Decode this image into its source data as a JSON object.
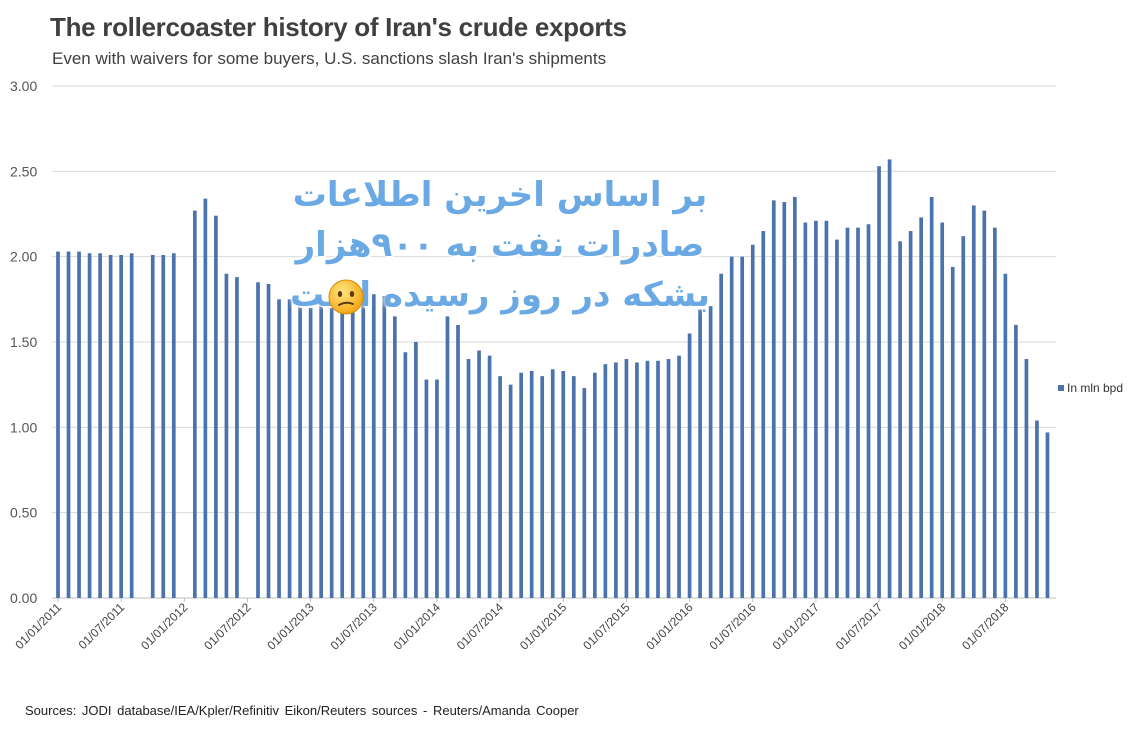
{
  "title": "The rollercoaster history of Iran's crude exports",
  "subtitle": "Even with waivers for some buyers, U.S. sanctions slash Iran's shipments",
  "source": "Sources: JODI database/IEA/Kpler/Refinitiv Eikon/Reuters sources - Reuters/Amanda Cooper",
  "overlay_text": "بر اساس اخرین اطلاعات صادرات نفت به ۹۰۰هزار بشکه در روز رسیده است",
  "colors": {
    "bar": "#4a72ac",
    "grid": "#d9d9d9"
  },
  "chart_data": {
    "type": "bar",
    "ylim": [
      0,
      3
    ],
    "yticks": [
      "0.00",
      "0.50",
      "1.00",
      "1.50",
      "2.00",
      "2.50",
      "3.00"
    ],
    "xtick_labels": [
      "01/01/2011",
      "01/07/2011",
      "01/01/2012",
      "01/07/2012",
      "01/01/2013",
      "01/07/2013",
      "01/01/2014",
      "01/07/2014",
      "01/01/2015",
      "01/07/2015",
      "01/01/2016",
      "01/07/2016",
      "01/01/2017",
      "01/07/2017",
      "01/01/2018",
      "01/07/2018"
    ],
    "grid": "horizontal",
    "legend_position": "right",
    "series": [
      {
        "name": "In mln bpd",
        "values": [
          2.03,
          2.03,
          2.03,
          2.02,
          2.02,
          2.01,
          2.01,
          2.02,
          null,
          2.01,
          2.01,
          2.02,
          null,
          2.27,
          2.34,
          2.24,
          1.9,
          1.88,
          null,
          1.85,
          1.84,
          1.75,
          1.75,
          1.72,
          1.73,
          1.72,
          1.73,
          1.78,
          1.72,
          1.75,
          1.78,
          1.77,
          1.65,
          1.44,
          1.5,
          1.28,
          1.28,
          1.65,
          1.6,
          1.4,
          1.45,
          1.42,
          1.3,
          1.25,
          1.32,
          1.33,
          1.3,
          1.34,
          1.33,
          1.3,
          1.23,
          1.32,
          1.37,
          1.38,
          1.4,
          1.38,
          1.39,
          1.39,
          1.4,
          1.42,
          1.55,
          1.69,
          1.71,
          1.9,
          2.0,
          2.0,
          2.07,
          2.15,
          2.33,
          2.32,
          2.35,
          2.2,
          2.21,
          2.21,
          2.1,
          2.17,
          2.17,
          2.19,
          2.53,
          2.57,
          2.09,
          2.15,
          2.23,
          2.35,
          2.2,
          1.94,
          2.12,
          2.3,
          2.27,
          2.17,
          1.9,
          1.6,
          1.4,
          1.04,
          0.97
        ]
      }
    ]
  }
}
